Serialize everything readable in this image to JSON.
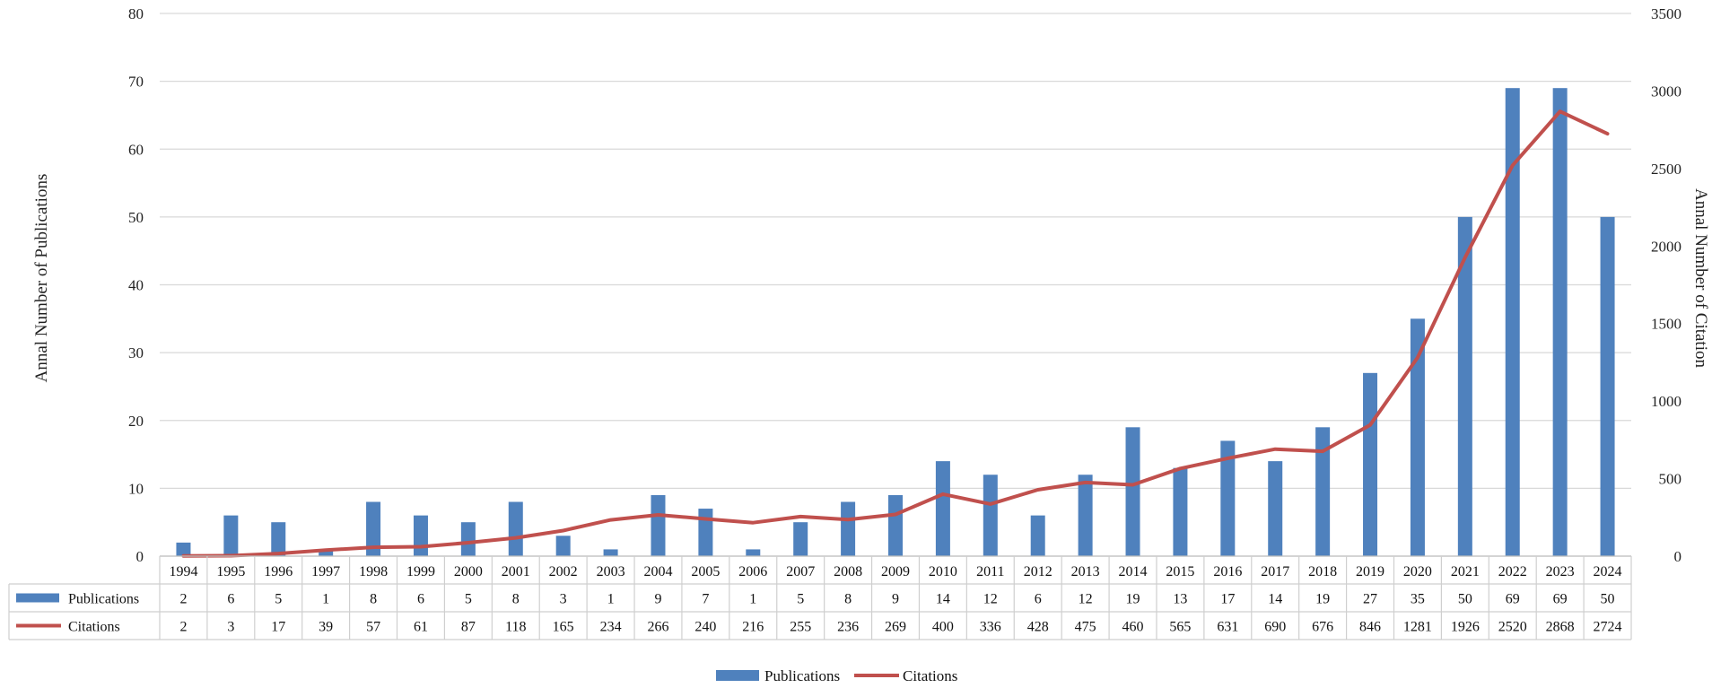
{
  "chart_data": {
    "type": "bar",
    "categories": [
      "1994",
      "1995",
      "1996",
      "1997",
      "1998",
      "1999",
      "2000",
      "2001",
      "2002",
      "2003",
      "2004",
      "2005",
      "2006",
      "2007",
      "2008",
      "2009",
      "2010",
      "2011",
      "2012",
      "2013",
      "2014",
      "2015",
      "2016",
      "2017",
      "2018",
      "2019",
      "2020",
      "2021",
      "2022",
      "2023",
      "2024"
    ],
    "series": [
      {
        "name": "Publications",
        "kind": "bar",
        "axis": "left",
        "color": "#4F81BD",
        "values": [
          2,
          6,
          5,
          1,
          8,
          6,
          5,
          8,
          3,
          1,
          9,
          7,
          1,
          5,
          8,
          9,
          14,
          12,
          6,
          12,
          19,
          13,
          17,
          14,
          19,
          27,
          35,
          50,
          69,
          69,
          50
        ]
      },
      {
        "name": "Citations",
        "kind": "line",
        "axis": "right",
        "color": "#C0504D",
        "values": [
          2,
          3,
          17,
          39,
          57,
          61,
          87,
          118,
          165,
          234,
          266,
          240,
          216,
          255,
          236,
          269,
          400,
          336,
          428,
          475,
          460,
          565,
          631,
          690,
          676,
          846,
          1281,
          1926,
          2520,
          2868,
          2724
        ]
      }
    ],
    "ylabel": "Annal Number of Publications",
    "y2label": "Annal Number of Citation",
    "ylim": [
      0,
      80
    ],
    "y2lim": [
      0,
      3500
    ],
    "yticks": [
      0,
      10,
      20,
      30,
      40,
      50,
      60,
      70,
      80
    ],
    "y2ticks": [
      0,
      500,
      1000,
      1500,
      2000,
      2500,
      3000,
      3500
    ],
    "grid": true,
    "data_table": true,
    "legend_position": "bottom"
  }
}
